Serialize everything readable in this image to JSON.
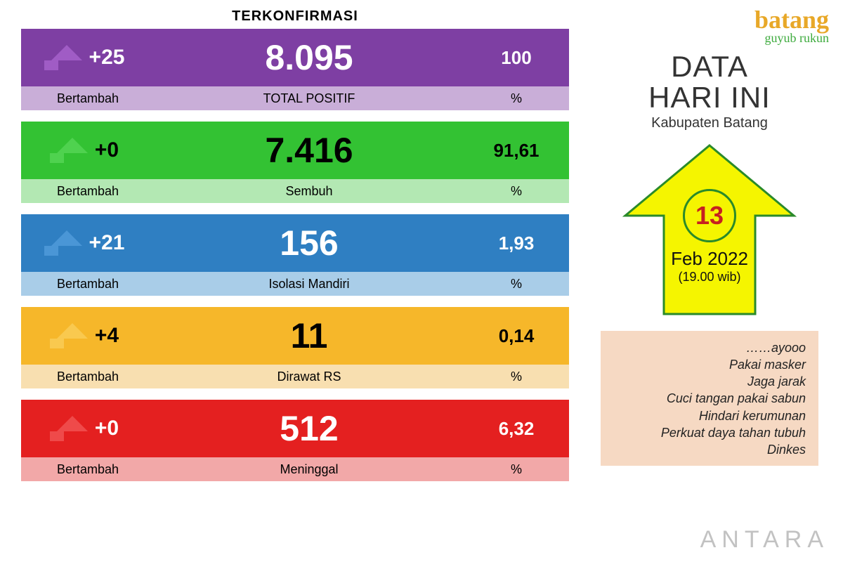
{
  "header_label": "TERKONFIRMASI",
  "rows": [
    {
      "increment": "+25",
      "total": "8.095",
      "pct": "100",
      "inc_label": "Bertambah",
      "total_label": "TOTAL  POSITIF",
      "pct_label": "%",
      "color_top": "#7e3fa3",
      "color_bottom": "#c9aed8",
      "text_light": true,
      "arrow_fill": "#a05cc5"
    },
    {
      "increment": "+0",
      "total": "7.416",
      "pct": "91,61",
      "inc_label": "Bertambah",
      "total_label": "Sembuh",
      "pct_label": "%",
      "color_top": "#33c233",
      "color_bottom": "#b3e8b3",
      "text_light": false,
      "arrow_fill": "#4fd24f"
    },
    {
      "increment": "+21",
      "total": "156",
      "pct": "1,93",
      "inc_label": "Bertambah",
      "total_label": "Isolasi  Mandiri",
      "pct_label": "%",
      "color_top": "#2f7fc2",
      "color_bottom": "#a9cde8",
      "text_light": true,
      "arrow_fill": "#4a96d6"
    },
    {
      "increment": "+4",
      "total": "11",
      "pct": "0,14",
      "inc_label": "Bertambah",
      "total_label": "Dirawat RS",
      "pct_label": "%",
      "color_top": "#f6b72a",
      "color_bottom": "#f8dfb0",
      "text_light": false,
      "arrow_fill": "#f9c94f"
    },
    {
      "increment": "+0",
      "total": "512",
      "pct": "6,32",
      "inc_label": "Bertambah",
      "total_label": "Meninggal",
      "pct_label": "%",
      "color_top": "#e42020",
      "color_bottom": "#f2a8a8",
      "text_light": true,
      "arrow_fill": "#ef4a4a"
    }
  ],
  "logo": {
    "main": "batang",
    "sub": "guyub rukun"
  },
  "title_line1": "DATA",
  "title_line2": "HARI INI",
  "subtitle": "Kabupaten Batang",
  "date": {
    "day": "13",
    "month": "Feb 2022",
    "time": "(19.00 wib)"
  },
  "big_arrow": {
    "fill": "#f5f500",
    "stroke": "#2a8a2a"
  },
  "tips": {
    "bg": "#f6d9c3",
    "lines": [
      "……ayooo",
      "Pakai masker",
      "Jaga jarak",
      "Cuci tangan pakai sabun",
      "Hindari kerumunan",
      "Perkuat daya  tahan  tubuh",
      "Dinkes"
    ]
  },
  "watermark": "ANTARA"
}
